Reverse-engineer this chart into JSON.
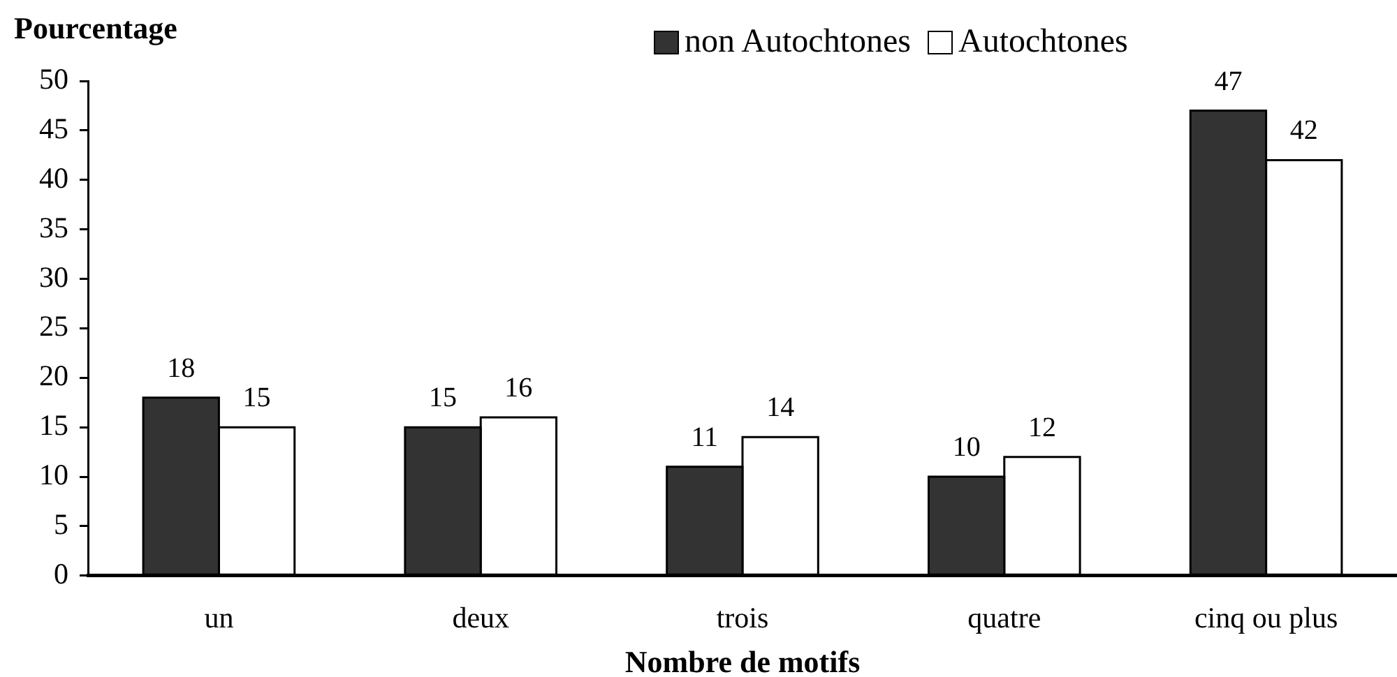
{
  "chart_data": {
    "type": "bar",
    "ylabel": "Pourcentage",
    "xlabel": "Nombre de motifs",
    "categories": [
      "un",
      "deux",
      "trois",
      "quatre",
      "cinq ou plus"
    ],
    "series": [
      {
        "name": "non Autochtones",
        "color": "#333333",
        "values": [
          18,
          15,
          11,
          10,
          47
        ]
      },
      {
        "name": "Autochtones",
        "color": "#ffffff",
        "values": [
          15,
          16,
          14,
          12,
          42
        ]
      }
    ],
    "ylim": [
      0,
      50
    ],
    "yticks": [
      0,
      5,
      10,
      15,
      20,
      25,
      30,
      35,
      40,
      45,
      50
    ],
    "grid": false,
    "legend": "top",
    "data_labels": true
  }
}
